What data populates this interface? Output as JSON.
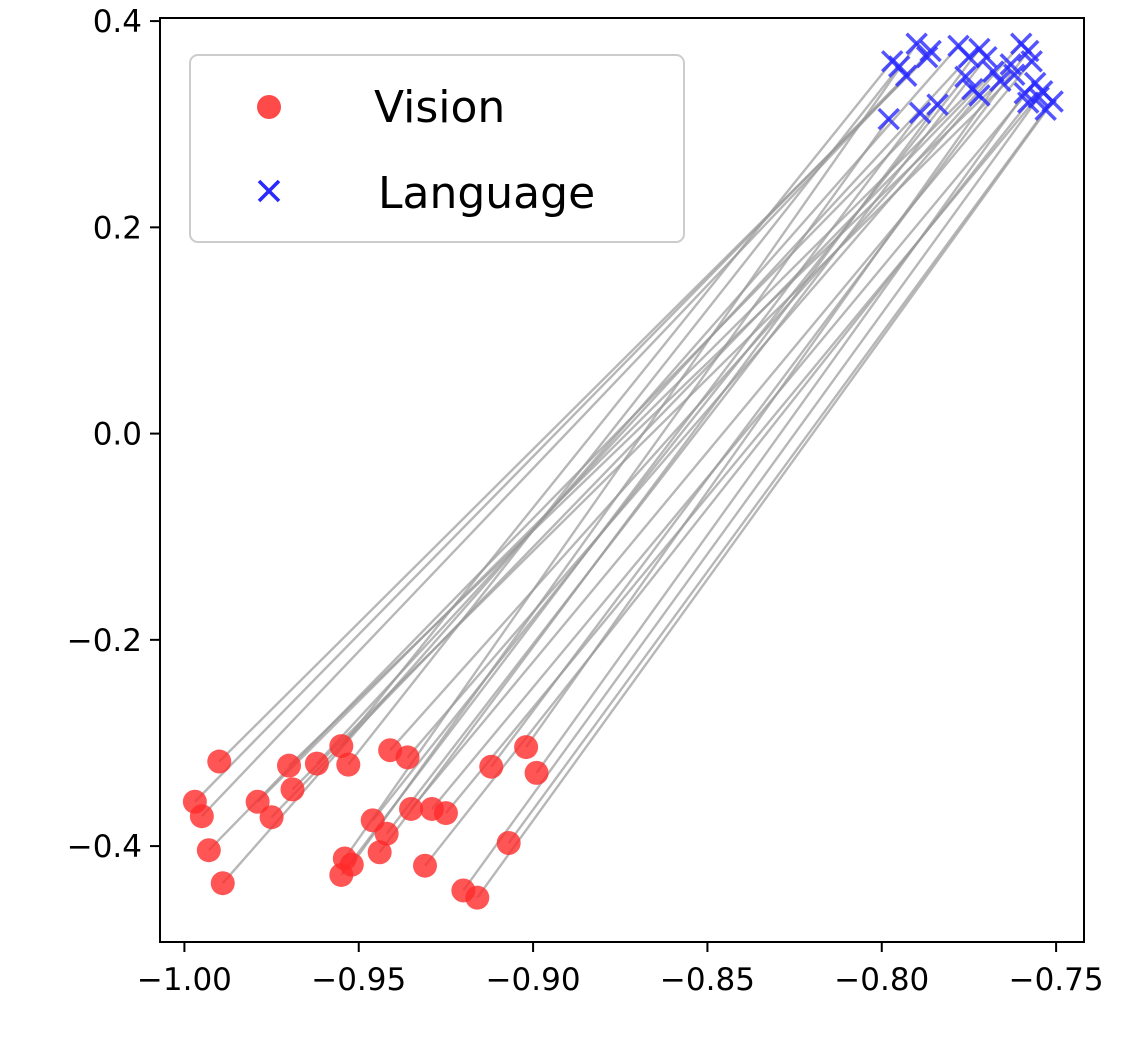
{
  "chart_data": {
    "type": "scatter",
    "title": "",
    "xlabel": "",
    "ylabel": "",
    "xlim": [
      -1.007,
      -0.742
    ],
    "ylim": [
      -0.493,
      0.403
    ],
    "grid": false,
    "legend_position": "top-left",
    "x_ticks": [
      {
        "value": -1.0,
        "label": "−1.00"
      },
      {
        "value": -0.95,
        "label": "−0.95"
      },
      {
        "value": -0.9,
        "label": "−0.90"
      },
      {
        "value": -0.85,
        "label": "−0.85"
      },
      {
        "value": -0.8,
        "label": "−0.80"
      },
      {
        "value": -0.75,
        "label": "−0.75"
      }
    ],
    "y_ticks": [
      {
        "value": -0.4,
        "label": "−0.4"
      },
      {
        "value": -0.2,
        "label": "−0.2"
      },
      {
        "value": 0.0,
        "label": "0.0"
      },
      {
        "value": 0.2,
        "label": "0.2"
      },
      {
        "value": 0.4,
        "label": "0.4"
      }
    ],
    "series": [
      {
        "name": "Vision",
        "marker": "circle",
        "color": "#ff2a2a",
        "points": [
          [
            -0.99,
            -0.318
          ],
          [
            -0.997,
            -0.357
          ],
          [
            -0.995,
            -0.371
          ],
          [
            -0.993,
            -0.404
          ],
          [
            -0.989,
            -0.436
          ],
          [
            -0.979,
            -0.357
          ],
          [
            -0.975,
            -0.372
          ],
          [
            -0.97,
            -0.322
          ],
          [
            -0.969,
            -0.345
          ],
          [
            -0.962,
            -0.32
          ],
          [
            -0.955,
            -0.303
          ],
          [
            -0.953,
            -0.321
          ],
          [
            -0.954,
            -0.412
          ],
          [
            -0.955,
            -0.428
          ],
          [
            -0.952,
            -0.418
          ],
          [
            -0.946,
            -0.375
          ],
          [
            -0.944,
            -0.406
          ],
          [
            -0.942,
            -0.388
          ],
          [
            -0.941,
            -0.307
          ],
          [
            -0.936,
            -0.314
          ],
          [
            -0.935,
            -0.364
          ],
          [
            -0.929,
            -0.364
          ],
          [
            -0.925,
            -0.368
          ],
          [
            -0.931,
            -0.419
          ],
          [
            -0.92,
            -0.443
          ],
          [
            -0.916,
            -0.45
          ],
          [
            -0.912,
            -0.323
          ],
          [
            -0.907,
            -0.397
          ],
          [
            -0.902,
            -0.304
          ],
          [
            -0.899,
            -0.329
          ]
        ]
      },
      {
        "name": "Language",
        "marker": "x",
        "color": "#2a2aff",
        "points": [
          [
            -0.797,
            0.361
          ],
          [
            -0.795,
            0.356
          ],
          [
            -0.793,
            0.347
          ],
          [
            -0.79,
            0.378
          ],
          [
            -0.787,
            0.365
          ],
          [
            -0.786,
            0.371
          ],
          [
            -0.789,
            0.311
          ],
          [
            -0.784,
            0.319
          ],
          [
            -0.798,
            0.305
          ],
          [
            -0.778,
            0.376
          ],
          [
            -0.776,
            0.346
          ],
          [
            -0.774,
            0.334
          ],
          [
            -0.772,
            0.373
          ],
          [
            -0.77,
            0.365
          ],
          [
            -0.768,
            0.351
          ],
          [
            -0.772,
            0.328
          ],
          [
            -0.766,
            0.342
          ],
          [
            -0.76,
            0.378
          ],
          [
            -0.758,
            0.371
          ],
          [
            -0.757,
            0.361
          ],
          [
            -0.762,
            0.348
          ],
          [
            -0.756,
            0.34
          ],
          [
            -0.754,
            0.332
          ],
          [
            -0.758,
            0.321
          ],
          [
            -0.755,
            0.326
          ],
          [
            -0.753,
            0.314
          ],
          [
            -0.751,
            0.322
          ],
          [
            -0.759,
            0.33
          ],
          [
            -0.763,
            0.358
          ],
          [
            -0.775,
            0.365
          ]
        ]
      }
    ],
    "connections": {
      "color": "#999999",
      "pairs": [
        [
          0,
          4
        ],
        [
          1,
          2
        ],
        [
          2,
          5
        ],
        [
          3,
          7
        ],
        [
          4,
          9
        ],
        [
          5,
          11
        ],
        [
          6,
          14
        ],
        [
          7,
          16
        ],
        [
          8,
          20
        ],
        [
          9,
          29
        ],
        [
          10,
          0
        ],
        [
          11,
          1
        ],
        [
          12,
          3
        ],
        [
          13,
          6
        ],
        [
          14,
          8
        ],
        [
          15,
          10
        ],
        [
          16,
          12
        ],
        [
          17,
          13
        ],
        [
          18,
          17
        ],
        [
          19,
          15
        ],
        [
          20,
          19
        ],
        [
          21,
          21
        ],
        [
          22,
          22
        ],
        [
          23,
          23
        ],
        [
          24,
          24
        ],
        [
          25,
          26
        ],
        [
          26,
          18
        ],
        [
          27,
          25
        ],
        [
          28,
          28
        ],
        [
          29,
          27
        ]
      ]
    }
  }
}
